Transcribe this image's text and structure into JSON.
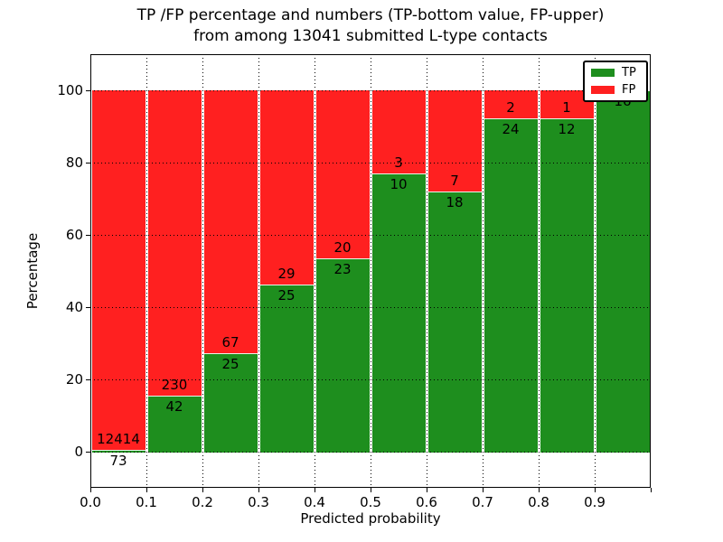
{
  "figure": {
    "title_line1": "TP /FP percentage and numbers (TP-bottom value, FP-upper)",
    "title_line2": "from among 13041 submitted L-type contacts",
    "xlabel": "Predicted probability",
    "ylabel": "Percentage"
  },
  "legend": {
    "position": "upper right",
    "items": [
      {
        "label": "TP",
        "color": "#1e8e1e"
      },
      {
        "label": "FP",
        "color": "#ff2020"
      }
    ]
  },
  "colors": {
    "tp_green": "#1e8e1e",
    "fp_red": "#ff2020",
    "background": "#ffffff",
    "grid": "#000000"
  },
  "chart_data": {
    "type": "bar",
    "stacked": true,
    "normalized": "each bar stacks TP+FP to 100%",
    "title": "TP /FP percentage and numbers (TP-bottom value, FP-upper) from among 13041 submitted L-type contacts",
    "xlabel": "Predicted probability",
    "ylabel": "Percentage",
    "categories": [
      "0.0-0.1",
      "0.1-0.2",
      "0.2-0.3",
      "0.3-0.4",
      "0.4-0.5",
      "0.5-0.6",
      "0.6-0.7",
      "0.7-0.8",
      "0.8-0.9",
      "0.9-1.0"
    ],
    "series": [
      {
        "name": "TP",
        "color": "#1e8e1e",
        "counts": [
          73,
          42,
          25,
          25,
          23,
          10,
          18,
          24,
          12,
          16
        ]
      },
      {
        "name": "FP",
        "color": "#ff2020",
        "counts": [
          12414,
          230,
          67,
          29,
          20,
          3,
          7,
          2,
          1,
          0
        ]
      }
    ],
    "tp_percent": [
      0.58,
      15.44,
      27.17,
      46.3,
      53.49,
      76.92,
      72.0,
      92.31,
      92.31,
      100.0
    ],
    "x_ticks": [
      "0.0",
      "0.1",
      "0.2",
      "0.3",
      "0.4",
      "0.5",
      "0.6",
      "0.7",
      "0.8",
      "0.9"
    ],
    "y_ticks": [
      0,
      20,
      40,
      60,
      80,
      100
    ],
    "xlim": [
      0.0,
      1.0
    ],
    "ylim": [
      -10,
      110
    ],
    "grid": true,
    "legend_position": "upper right"
  }
}
